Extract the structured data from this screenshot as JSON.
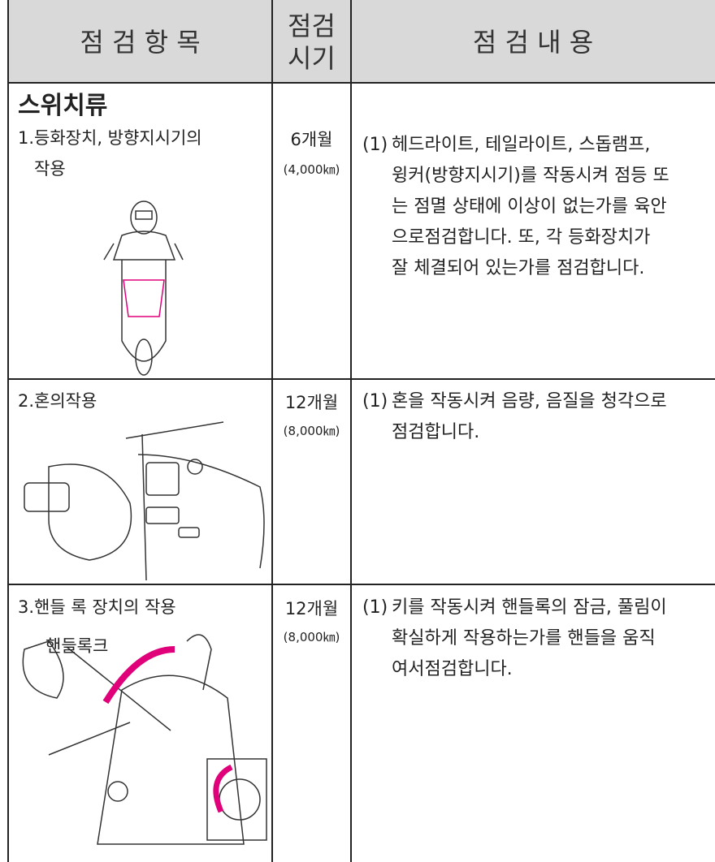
{
  "table": {
    "header": {
      "item": "점 검 항 목",
      "period": [
        "점검",
        "시기"
      ],
      "content": "점 검 내 용"
    },
    "section": "스위치류",
    "rows": [
      {
        "item": [
          "1.등화장치, 방향지시기의",
          "작용"
        ],
        "period": [
          "6개월",
          "(4,000㎞)"
        ],
        "marker": "(1)",
        "content": [
          "헤드라이트, 테일라이트, 스돕램프,",
          "윙커(방향지시기)를 작동시켜 점등 또",
          "는 점멸 상태에 이상이 없는가를 육안",
          "으로점검합니다. 또, 각 등화장치가",
          "잘 체결되어 있는가를 점검합니다."
        ]
      },
      {
        "item": [
          "2.혼의작용"
        ],
        "period": [
          "12개월",
          "(8,000㎞)"
        ],
        "marker": "(1)",
        "content": [
          "혼을 작동시켜 음량, 음질을 청각으로",
          "점검합니다."
        ]
      },
      {
        "item": [
          "3.핸들 록 장치의 작용"
        ],
        "period": [
          "12개월",
          "(8,000㎞)"
        ],
        "marker": "(1)",
        "content": [
          "키를 작동시켜 핸들록의 잠금, 풀림이",
          "확실하게 작용하는가를 핸들을 움직",
          "여서점검합니다."
        ],
        "label": "핸들록크"
      }
    ]
  }
}
